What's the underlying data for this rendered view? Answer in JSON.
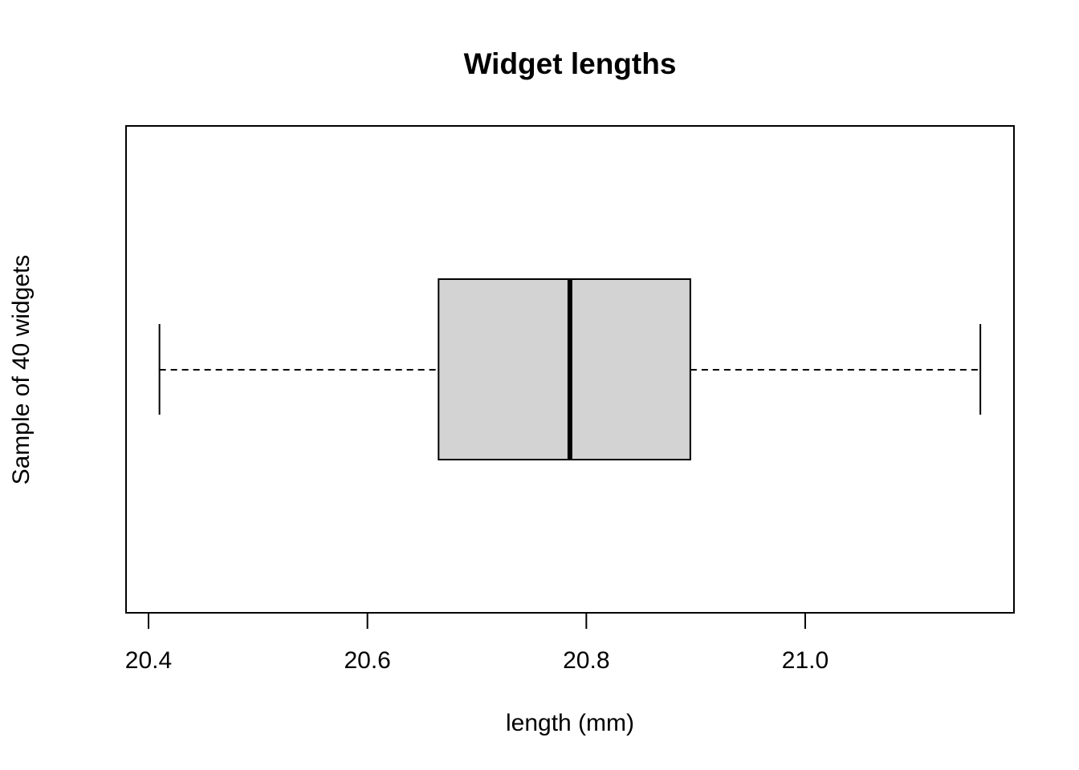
{
  "chart_data": {
    "type": "boxplot",
    "orientation": "horizontal",
    "title": "Widget lengths",
    "xlabel": "length (mm)",
    "ylabel": "Sample of 40 widgets",
    "xlim": [
      20.4,
      21.2
    ],
    "ticks": [
      20.4,
      20.6,
      20.8,
      21.0
    ],
    "tick_labels": [
      "20.4",
      "20.6",
      "20.8",
      "21.0"
    ],
    "stats": {
      "whisker_low": 20.41,
      "q1": 20.665,
      "median": 20.785,
      "q3": 20.895,
      "whisker_high": 21.16
    },
    "grid": false,
    "box_fill": "#d3d3d3",
    "line_color": "#000000"
  }
}
